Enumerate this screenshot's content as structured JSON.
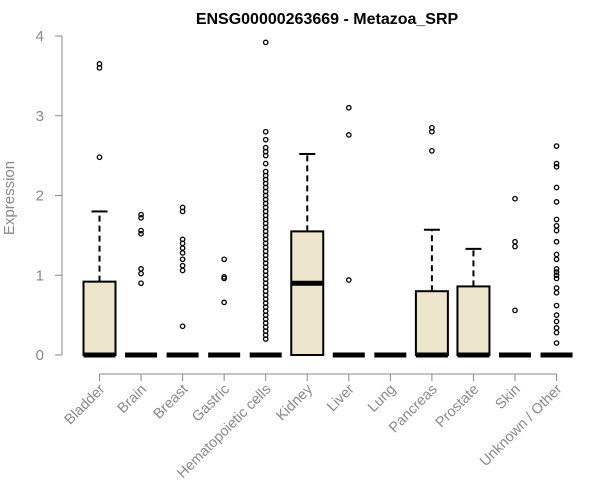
{
  "chart_data": {
    "type": "boxplot",
    "title": "ENSG00000263669 - Metazoa_SRP",
    "ylabel": "Expression",
    "xlabel": "",
    "ylim": [
      0,
      4
    ],
    "yticks": [
      "0",
      "1",
      "2",
      "3",
      "4"
    ],
    "grid": false,
    "colors": {
      "box_fill": "#ede5cc",
      "box_stroke": "#000000",
      "axis": "#888888"
    },
    "categories": [
      "Bladder",
      "Brain",
      "Breast",
      "Gastric",
      "Hematopoietic cells",
      "Kidney",
      "Liver",
      "Lung",
      "Pancreas",
      "Prostate",
      "Skin",
      "Unknown / Other"
    ],
    "boxes": [
      {
        "q1": 0,
        "median": 0,
        "q3": 0.92,
        "whisker_low": 0,
        "whisker_high": 1.8,
        "outliers": [
          2.48,
          3.6,
          3.65
        ]
      },
      {
        "q1": 0,
        "median": 0,
        "q3": 0,
        "whisker_low": 0,
        "whisker_high": 0,
        "outliers": [
          0.9,
          1.02,
          1.08,
          1.52,
          1.56,
          1.72,
          1.76
        ]
      },
      {
        "q1": 0,
        "median": 0,
        "q3": 0,
        "whisker_low": 0,
        "whisker_high": 0,
        "outliers": [
          0.36,
          1.06,
          1.12,
          1.2,
          1.28,
          1.34,
          1.4,
          1.45,
          1.8,
          1.85
        ]
      },
      {
        "q1": 0,
        "median": 0,
        "q3": 0,
        "whisker_low": 0,
        "whisker_high": 0,
        "outliers": [
          0.66,
          0.96,
          0.98,
          1.2
        ]
      },
      {
        "q1": 0,
        "median": 0,
        "q3": 0,
        "whisker_low": 0,
        "whisker_high": 0,
        "outliers": [
          0.2,
          0.25,
          0.3,
          0.35,
          0.4,
          0.45,
          0.5,
          0.55,
          0.6,
          0.65,
          0.7,
          0.75,
          0.8,
          0.85,
          0.9,
          0.95,
          1.0,
          1.05,
          1.1,
          1.15,
          1.2,
          1.25,
          1.3,
          1.35,
          1.4,
          1.45,
          1.5,
          1.55,
          1.6,
          1.65,
          1.7,
          1.75,
          1.8,
          1.85,
          1.9,
          1.95,
          2.0,
          2.05,
          2.1,
          2.15,
          2.2,
          2.25,
          2.3,
          2.4,
          2.5,
          2.55,
          2.6,
          2.7,
          2.8,
          3.92
        ]
      },
      {
        "q1": 0,
        "median": 0.9,
        "q3": 1.55,
        "whisker_low": 0,
        "whisker_high": 2.52,
        "outliers": []
      },
      {
        "q1": 0,
        "median": 0,
        "q3": 0,
        "whisker_low": 0,
        "whisker_high": 0,
        "outliers": [
          0.94,
          2.76,
          3.1
        ]
      },
      {
        "q1": 0,
        "median": 0,
        "q3": 0,
        "whisker_low": 0,
        "whisker_high": 0,
        "outliers": []
      },
      {
        "q1": 0,
        "median": 0,
        "q3": 0.8,
        "whisker_low": 0,
        "whisker_high": 1.57,
        "outliers": [
          2.56,
          2.8,
          2.85
        ]
      },
      {
        "q1": 0,
        "median": 0,
        "q3": 0.86,
        "whisker_low": 0,
        "whisker_high": 1.33,
        "outliers": []
      },
      {
        "q1": 0,
        "median": 0,
        "q3": 0,
        "whisker_low": 0,
        "whisker_high": 0,
        "outliers": [
          0.56,
          1.36,
          1.42,
          1.96
        ]
      },
      {
        "q1": 0,
        "median": 0,
        "q3": 0,
        "whisker_low": 0,
        "whisker_high": 0,
        "outliers": [
          0.15,
          0.28,
          0.34,
          0.42,
          0.5,
          0.62,
          0.78,
          0.84,
          0.96,
          1.0,
          1.04,
          1.08,
          1.2,
          1.26,
          1.42,
          1.56,
          1.62,
          1.7,
          1.92,
          2.1,
          2.36,
          2.4,
          2.62
        ]
      }
    ]
  }
}
